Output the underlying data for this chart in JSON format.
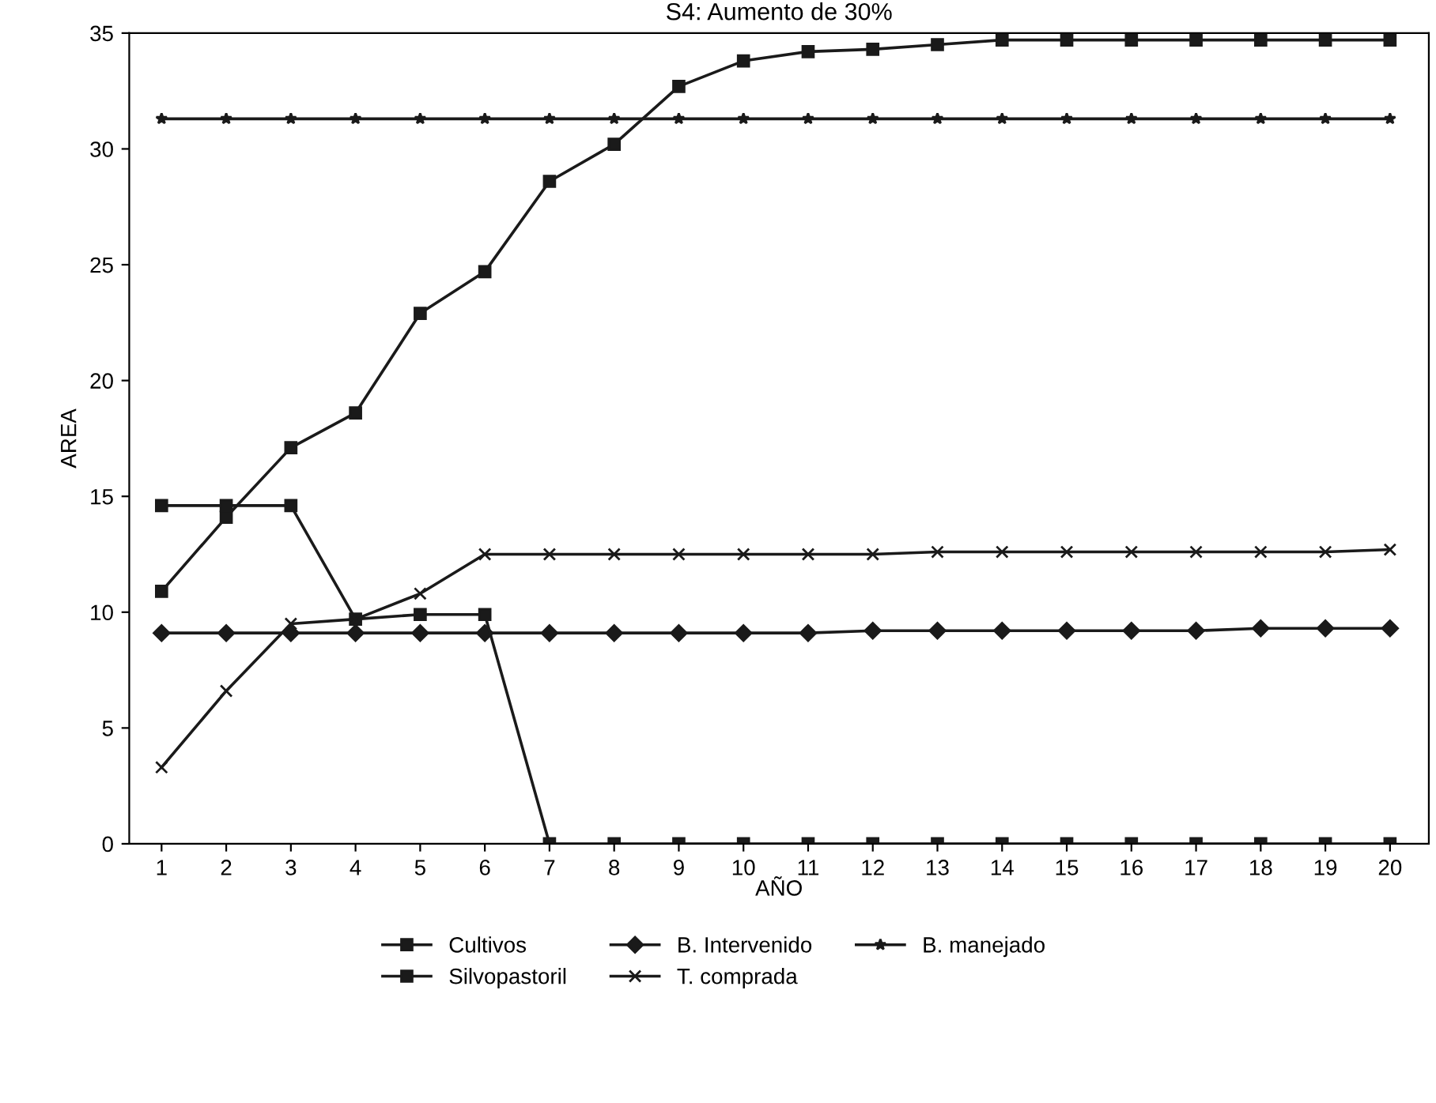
{
  "chart_data": {
    "type": "line",
    "title": "S4: Aumento de 30%",
    "xlabel": "AÑO",
    "ylabel": "AREA",
    "categories": [
      "1",
      "2",
      "3",
      "4",
      "5",
      "6",
      "7",
      "8",
      "9",
      "10",
      "11",
      "12",
      "13",
      "14",
      "15",
      "16",
      "17",
      "18",
      "19",
      "20"
    ],
    "ylim": [
      0,
      35
    ],
    "yticks": [
      0,
      5,
      10,
      15,
      20,
      25,
      30,
      35
    ],
    "grid": false,
    "legend": "bottom",
    "series": [
      {
        "name": "Cultivos",
        "color": "#1a1a1a",
        "marker": "square",
        "values": [
          10.9,
          14.1,
          17.1,
          18.6,
          22.9,
          24.7,
          28.6,
          30.2,
          32.7,
          33.8,
          34.2,
          34.3,
          34.5,
          34.7,
          34.7,
          34.7,
          34.7,
          34.7,
          34.7,
          34.7
        ]
      },
      {
        "name": "B. Intervenido",
        "color": "#1a1a1a",
        "marker": "diamond",
        "values": [
          9.1,
          9.1,
          9.1,
          9.1,
          9.1,
          9.1,
          9.1,
          9.1,
          9.1,
          9.1,
          9.1,
          9.2,
          9.2,
          9.2,
          9.2,
          9.2,
          9.2,
          9.3,
          9.3,
          9.3
        ]
      },
      {
        "name": "B. manejado",
        "color": "#1a1a1a",
        "marker": "star",
        "values": [
          31.3,
          31.3,
          31.3,
          31.3,
          31.3,
          31.3,
          31.3,
          31.3,
          31.3,
          31.3,
          31.3,
          31.3,
          31.3,
          31.3,
          31.3,
          31.3,
          31.3,
          31.3,
          31.3,
          31.3
        ]
      },
      {
        "name": "Silvopastoril",
        "color": "#1a1a1a",
        "marker": "square",
        "values": [
          14.6,
          14.6,
          14.6,
          9.7,
          9.9,
          9.9,
          0,
          0,
          0,
          0,
          0,
          0,
          0,
          0,
          0,
          0,
          0,
          0,
          0,
          0
        ]
      },
      {
        "name": "T. comprada",
        "color": "#1a1a1a",
        "marker": "cross",
        "values": [
          3.3,
          6.6,
          9.5,
          9.7,
          10.8,
          12.5,
          12.5,
          12.5,
          12.5,
          12.5,
          12.5,
          12.5,
          12.6,
          12.6,
          12.6,
          12.6,
          12.6,
          12.6,
          12.6,
          12.7
        ]
      }
    ]
  }
}
